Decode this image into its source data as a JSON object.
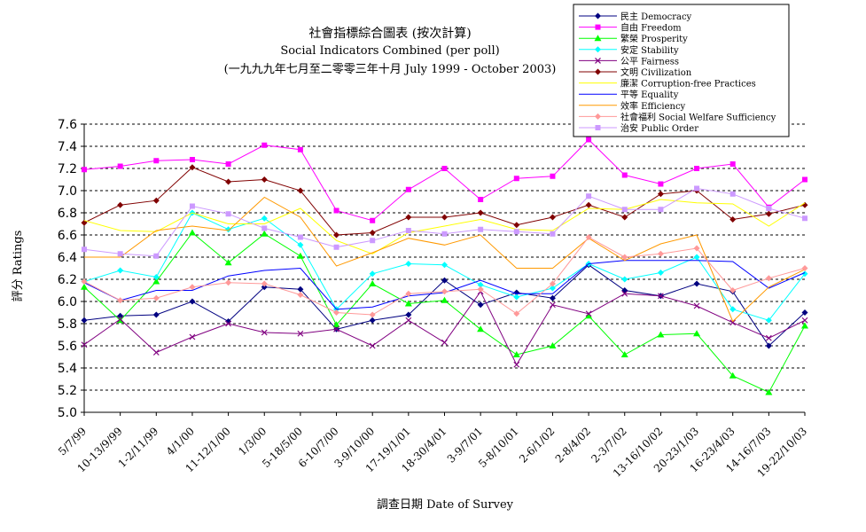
{
  "chart_data": {
    "type": "line",
    "title_lines": [
      "社會指標綜合圖表 (按次計算)",
      "Social Indicators Combined (per poll)",
      "(一九九九年七月至二零零三年十月 July 1999 - October 2003)"
    ],
    "xlabel": "調查日期 Date of Survey",
    "ylabel": "評分 Ratings",
    "ylim": [
      5.0,
      7.6
    ],
    "yticks": [
      "5.0",
      "5.2",
      "5.4",
      "5.6",
      "5.8",
      "6.0",
      "6.2",
      "6.4",
      "6.6",
      "6.8",
      "7.0",
      "7.2",
      "7.4",
      "7.6"
    ],
    "grid": true,
    "legend_position": "top-right",
    "x": [
      "5/7/99",
      "10-13/9/99",
      "1-2/11/99",
      "4/1/00",
      "11-12/1/00",
      "1/3/00",
      "5-18/5/00",
      "6-10/7/00",
      "3-9/10/00",
      "17-19/1/01",
      "18-30/4/01",
      "3-9/7/01",
      "5-8/10/01",
      "2-6/1/02",
      "2-8/4/02",
      "2-3/7/02",
      "13-16/10/02",
      "20-23/1/03",
      "16-23/4/03",
      "14-16/7/03",
      "19-22/10/03"
    ],
    "series": [
      {
        "name": "民主 Democracy",
        "color": "#000080",
        "marker": "diamond",
        "values": [
          5.83,
          5.87,
          5.88,
          6.0,
          5.82,
          6.13,
          6.11,
          5.75,
          5.83,
          5.88,
          6.19,
          5.97,
          6.08,
          6.03,
          6.33,
          6.1,
          6.05,
          6.16,
          6.09,
          5.6,
          5.9
        ]
      },
      {
        "name": "自由 Freedom",
        "color": "#ff00ff",
        "marker": "square",
        "values": [
          7.19,
          7.22,
          7.27,
          7.28,
          7.24,
          7.41,
          7.37,
          6.82,
          6.73,
          7.01,
          7.2,
          6.92,
          7.11,
          7.13,
          7.46,
          7.14,
          7.06,
          7.2,
          7.24,
          6.85,
          7.1
        ]
      },
      {
        "name": "繁榮 Prosperity",
        "color": "#00ff00",
        "marker": "triangle",
        "values": [
          6.13,
          5.83,
          6.18,
          6.62,
          6.35,
          6.61,
          6.41,
          5.79,
          6.16,
          5.98,
          6.01,
          5.75,
          5.52,
          5.6,
          5.87,
          5.52,
          5.7,
          5.71,
          5.33,
          5.18,
          5.78
        ]
      },
      {
        "name": "安定 Stability",
        "color": "#00ffff",
        "marker": "diamond",
        "values": [
          6.18,
          6.28,
          6.22,
          6.8,
          6.65,
          6.75,
          6.51,
          5.93,
          6.25,
          6.34,
          6.33,
          6.15,
          6.04,
          6.12,
          6.34,
          6.2,
          6.26,
          6.4,
          5.93,
          5.83,
          6.25
        ]
      },
      {
        "name": "公平 Fairness",
        "color": "#800080",
        "marker": "x",
        "values": [
          5.61,
          5.84,
          5.54,
          5.68,
          5.8,
          5.72,
          5.71,
          5.75,
          5.6,
          5.83,
          5.63,
          6.09,
          5.43,
          5.97,
          5.89,
          6.07,
          6.05,
          5.96,
          5.81,
          5.67,
          5.83
        ]
      },
      {
        "name": "文明 Civilization",
        "color": "#800000",
        "marker": "diamond",
        "values": [
          6.71,
          6.87,
          6.91,
          7.21,
          7.08,
          7.1,
          7.0,
          6.6,
          6.62,
          6.76,
          6.76,
          6.8,
          6.69,
          6.76,
          6.87,
          6.76,
          6.97,
          7.0,
          6.74,
          6.79,
          6.87
        ]
      },
      {
        "name": "廉潔 Corruption-free Practices",
        "color": "#ffff00",
        "marker": "none",
        "values": [
          6.73,
          6.64,
          6.63,
          6.8,
          6.7,
          6.7,
          6.84,
          6.55,
          6.43,
          6.62,
          6.68,
          6.74,
          6.65,
          6.64,
          6.84,
          6.83,
          6.92,
          6.89,
          6.88,
          6.68,
          6.89
        ]
      },
      {
        "name": "平等 Equality",
        "color": "#0000ff",
        "marker": "none",
        "values": [
          6.17,
          6.01,
          6.1,
          6.1,
          6.23,
          6.28,
          6.3,
          5.93,
          5.95,
          6.05,
          6.08,
          6.19,
          6.07,
          6.07,
          6.34,
          6.37,
          6.37,
          6.37,
          6.36,
          6.12,
          6.26
        ]
      },
      {
        "name": "效率 Efficiency",
        "color": "#ff9900",
        "marker": "none",
        "values": [
          6.4,
          6.4,
          6.64,
          6.68,
          6.64,
          6.94,
          6.76,
          6.32,
          6.44,
          6.57,
          6.51,
          6.6,
          6.3,
          6.3,
          6.57,
          6.37,
          6.52,
          6.6,
          5.82,
          6.13,
          6.29
        ]
      },
      {
        "name": "社會福利 Social Welfare Sufficiency",
        "color": "#ff9999",
        "marker": "diamond",
        "values": [
          6.18,
          6.01,
          6.03,
          6.13,
          6.17,
          6.16,
          6.06,
          5.9,
          5.88,
          6.07,
          6.09,
          6.11,
          5.89,
          6.16,
          6.58,
          6.4,
          6.43,
          6.48,
          6.1,
          6.21,
          6.3
        ]
      },
      {
        "name": "治安 Public Order",
        "color": "#cc99ff",
        "marker": "square",
        "values": [
          6.47,
          6.43,
          6.41,
          6.86,
          6.79,
          6.66,
          6.58,
          6.49,
          6.55,
          6.64,
          6.61,
          6.65,
          6.63,
          6.61,
          6.95,
          6.83,
          6.83,
          7.02,
          6.97,
          6.84,
          6.75
        ]
      }
    ]
  }
}
